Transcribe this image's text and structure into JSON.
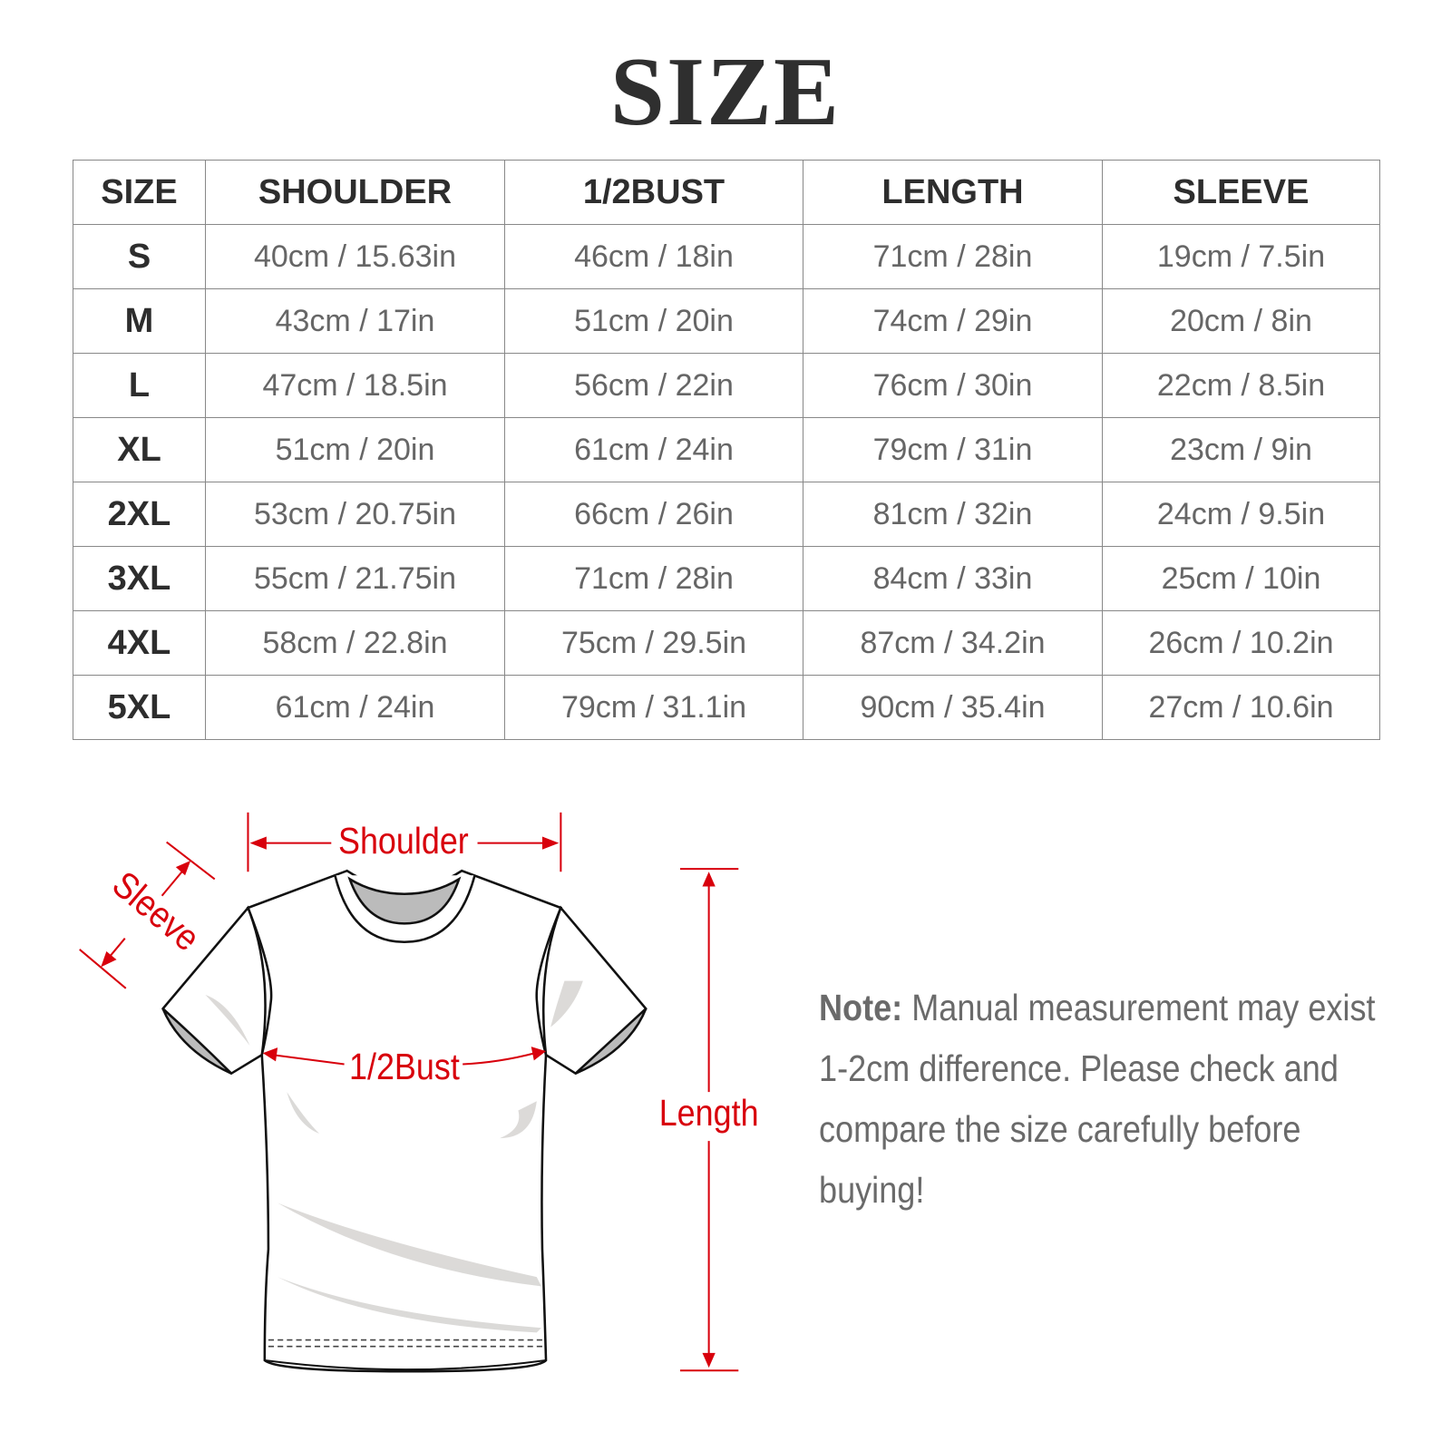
{
  "title": "SIZE",
  "table": {
    "headers": [
      "SIZE",
      "SHOULDER",
      "1/2BUST",
      "LENGTH",
      "SLEEVE"
    ],
    "rows": [
      [
        "S",
        "40cm / 15.63in",
        "46cm / 18in",
        "71cm / 28in",
        "19cm / 7.5in"
      ],
      [
        "M",
        "43cm / 17in",
        "51cm / 20in",
        "74cm / 29in",
        "20cm / 8in"
      ],
      [
        "L",
        "47cm / 18.5in",
        "56cm / 22in",
        "76cm / 30in",
        "22cm / 8.5in"
      ],
      [
        "XL",
        "51cm / 20in",
        "61cm / 24in",
        "79cm / 31in",
        "23cm / 9in"
      ],
      [
        "2XL",
        "53cm / 20.75in",
        "66cm / 26in",
        "81cm / 32in",
        "24cm / 9.5in"
      ],
      [
        "3XL",
        "55cm / 21.75in",
        "71cm / 28in",
        "84cm / 33in",
        "25cm / 10in"
      ],
      [
        "4XL",
        "58cm / 22.8in",
        "75cm / 29.5in",
        "87cm / 34.2in",
        "26cm / 10.2in"
      ],
      [
        "5XL",
        "61cm / 24in",
        "79cm / 31.1in",
        "90cm / 35.4in",
        "27cm / 10.6in"
      ]
    ]
  },
  "diagram": {
    "shoulder": "Shoulder",
    "sleeve": "Sleeve",
    "bust": "1/2Bust",
    "length": "Length",
    "accent_color": "#d8000c"
  },
  "note": {
    "label": "Note:",
    "text": " Manual measurement may exist 1-2cm difference. Please check and compare the size carefully before buying!"
  }
}
